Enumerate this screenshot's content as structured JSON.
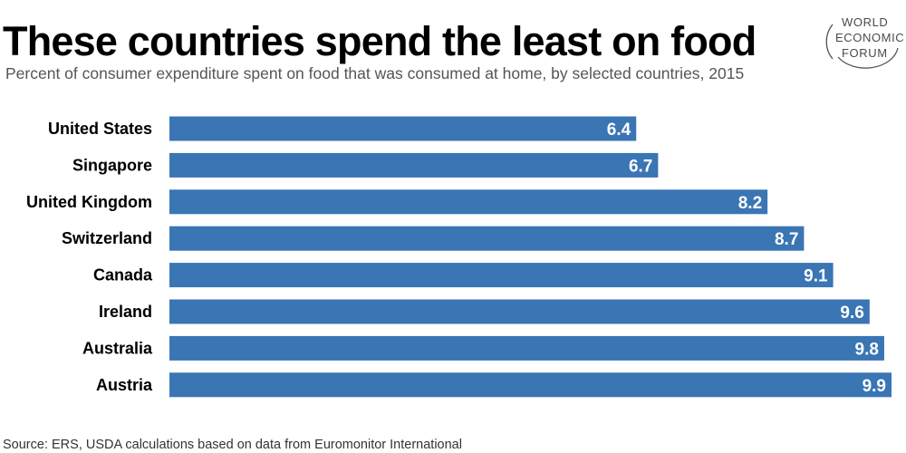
{
  "header": {
    "title": "These countries spend the least on food",
    "subtitle": "Percent of consumer expenditure spent on food that was consumed at home, by selected countries, 2015"
  },
  "logo": {
    "lines": [
      "WORLD",
      "ECONOMIC",
      "FORUM"
    ],
    "color": "#4a4a4a"
  },
  "colors": {
    "bar": "#3a75b4",
    "value_label": "#ffffff",
    "category_label": "#000000"
  },
  "chart_data": {
    "type": "bar",
    "orientation": "horizontal",
    "categories": [
      "United States",
      "Singapore",
      "United Kingdom",
      "Switzerland",
      "Canada",
      "Ireland",
      "Australia",
      "Austria"
    ],
    "values": [
      6.4,
      6.7,
      8.2,
      8.7,
      9.1,
      9.6,
      9.8,
      9.9
    ],
    "data_labels": [
      "6.4",
      "6.7",
      "8.2",
      "8.7",
      "9.1",
      "9.6",
      "9.8",
      "9.9"
    ],
    "title": "These countries spend the least on food",
    "xlabel": "",
    "ylabel": "",
    "xlim": [
      0,
      9.9
    ],
    "grid": false,
    "legend": "none"
  },
  "footer": {
    "source": "Source: ERS, USDA calculations based on data from Euromonitor International"
  }
}
